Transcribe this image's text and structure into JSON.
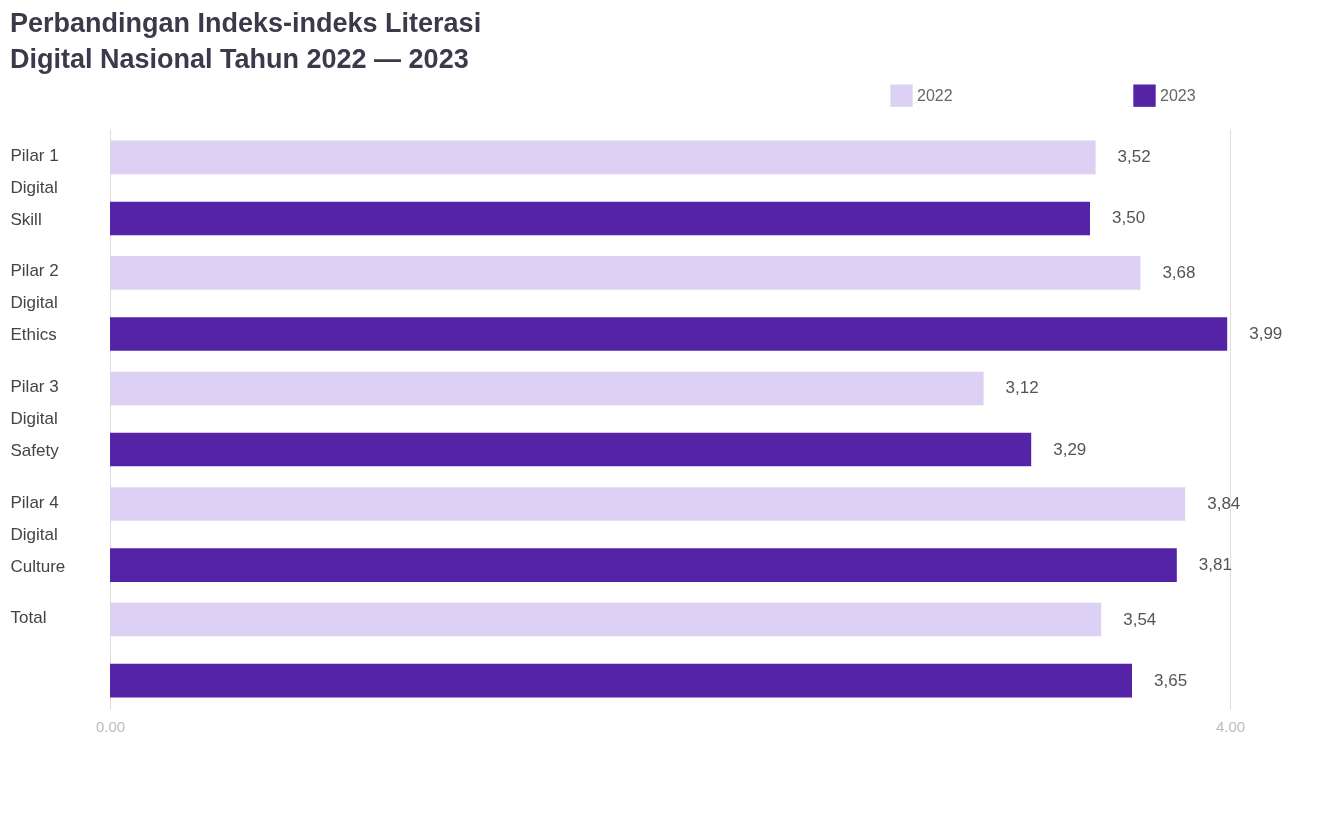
{
  "chart_data": {
    "type": "bar",
    "orientation": "horizontal",
    "title": "Perbandingan Indeks-indeks Literasi\nDigital Nasional Tahun 2022 — 2023",
    "categories": [
      "Pilar 1\nDigital\nSkill",
      "Pilar 2\nDigital\nEthics",
      "Pilar 3\nDigital\nSafety",
      "Pilar 4\nDigital\nCulture",
      "Total"
    ],
    "series": [
      {
        "name": "2022",
        "color": "#ddd0f5",
        "values": [
          3.52,
          3.68,
          3.12,
          3.84,
          3.54
        ],
        "value_labels": [
          "3,52",
          "3,68",
          "3,12",
          "3,84",
          "3,54"
        ]
      },
      {
        "name": "2023",
        "color": "#5423a6",
        "values": [
          3.5,
          3.99,
          3.29,
          3.81,
          3.65
        ],
        "value_labels": [
          "3,50",
          "3,99",
          "3,29",
          "3,81",
          "3,65"
        ]
      }
    ],
    "xlim": [
      0,
      4
    ],
    "xticks": [
      {
        "value": 0,
        "label": "0.00"
      },
      {
        "value": 4,
        "label": "4.00"
      }
    ],
    "grid": "x",
    "legend": "top right"
  }
}
